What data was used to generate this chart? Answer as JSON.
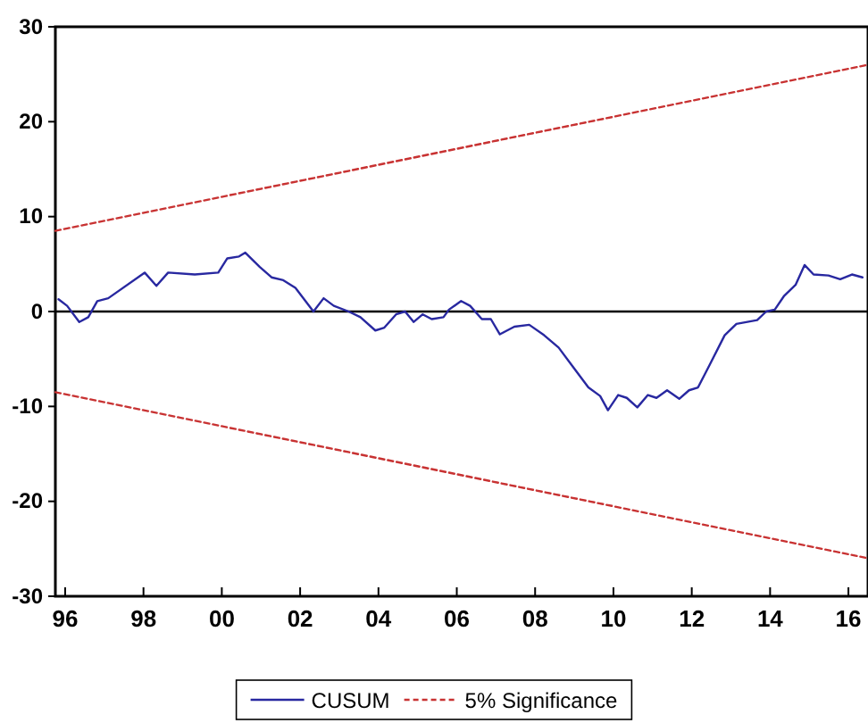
{
  "chart_data": {
    "type": "line",
    "legend": "bottom",
    "grid": false,
    "xlim": [
      1995.75,
      2016.5
    ],
    "xticks": [
      {
        "value": 1996,
        "label": "96"
      },
      {
        "value": 1998,
        "label": "98"
      },
      {
        "value": 2000,
        "label": "00"
      },
      {
        "value": 2002,
        "label": "02"
      },
      {
        "value": 2004,
        "label": "04"
      },
      {
        "value": 2006,
        "label": "06"
      },
      {
        "value": 2008,
        "label": "08"
      },
      {
        "value": 2010,
        "label": "10"
      },
      {
        "value": 2012,
        "label": "12"
      },
      {
        "value": 2014,
        "label": "14"
      },
      {
        "value": 2016,
        "label": "16"
      }
    ],
    "ylim": [
      -30,
      30
    ],
    "yticks": [
      -30,
      -20,
      -10,
      0,
      10,
      20,
      30
    ],
    "ref_lines": [
      {
        "axis": "y",
        "value": 0,
        "color": "#000000"
      }
    ],
    "series": [
      {
        "name": "CUSUM",
        "color": "#2828a0",
        "line_style": "solid",
        "x": [
          1995.83,
          1996.05,
          1996.36,
          1996.59,
          1996.82,
          1997.1,
          1998.03,
          1998.33,
          1998.63,
          1999.31,
          1999.91,
          2000.14,
          2000.44,
          2000.6,
          2000.97,
          2001.27,
          2001.57,
          2001.88,
          2002.34,
          2002.6,
          2002.86,
          2003.24,
          2003.54,
          2003.92,
          2004.15,
          2004.45,
          2004.68,
          2004.9,
          2005.13,
          2005.36,
          2005.66,
          2005.8,
          2006.11,
          2006.34,
          2006.64,
          2006.87,
          2007.1,
          2007.47,
          2007.85,
          2008.23,
          2008.6,
          2008.98,
          2009.36,
          2009.66,
          2009.86,
          2010.12,
          2010.34,
          2010.61,
          2010.88,
          2011.1,
          2011.37,
          2011.68,
          2011.93,
          2012.16,
          2012.46,
          2012.84,
          2013.14,
          2013.67,
          2013.9,
          2014.12,
          2014.35,
          2014.65,
          2014.88,
          2015.11,
          2015.49,
          2015.79,
          2016.09,
          2016.36
        ],
        "values": [
          1.3,
          0.6,
          -1.1,
          -0.6,
          1.1,
          1.4,
          4.1,
          2.7,
          4.1,
          3.9,
          4.1,
          5.6,
          5.8,
          6.2,
          4.7,
          3.6,
          3.3,
          2.5,
          0,
          1.4,
          0.6,
          0,
          -0.6,
          -2,
          -1.7,
          -0.3,
          0,
          -1.1,
          -0.3,
          -0.8,
          -0.6,
          0.2,
          1.1,
          0.6,
          -0.8,
          -0.8,
          -2.4,
          -1.6,
          -1.4,
          -2.5,
          -3.8,
          -5.9,
          -8,
          -8.9,
          -10.4,
          -8.8,
          -9.1,
          -10.1,
          -8.8,
          -9.1,
          -8.3,
          -9.2,
          -8.3,
          -8,
          -5.6,
          -2.5,
          -1.3,
          -0.9,
          0,
          0.2,
          1.6,
          2.8,
          4.9,
          3.9,
          3.8,
          3.4,
          3.9,
          3.6
        ]
      },
      {
        "name": "5% Significance",
        "color": "#c83232",
        "line_style": "dashed",
        "x": [
          1995.75,
          2016.5
        ],
        "values": [
          8.5,
          26
        ]
      },
      {
        "color": "#c83232",
        "line_style": "dashed",
        "x": [
          1995.75,
          2016.5
        ],
        "values": [
          -8.5,
          -26
        ]
      }
    ]
  }
}
